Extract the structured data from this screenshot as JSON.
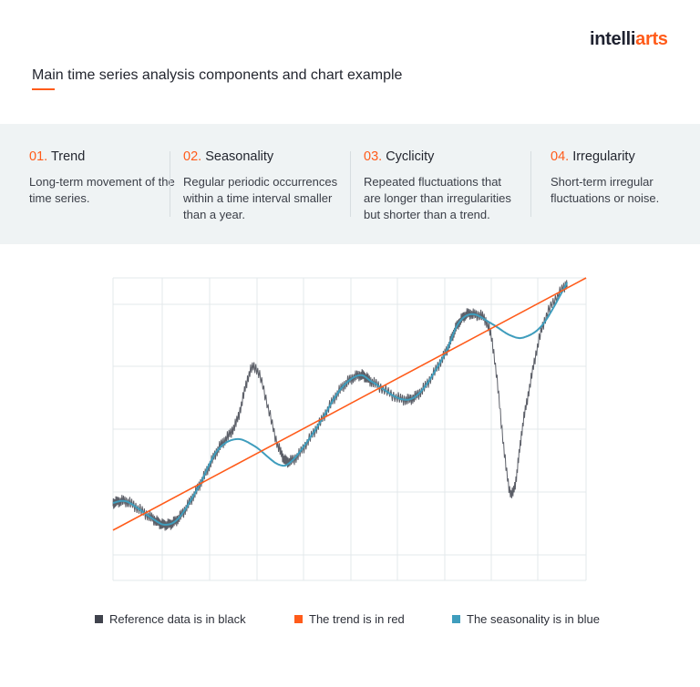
{
  "brand": {
    "logo_part1": "intelli",
    "logo_part2": "arts",
    "accent_color": "#ff5b1a"
  },
  "header": {
    "title": "Main time series analysis components and chart example"
  },
  "components": [
    {
      "number": "01.",
      "name": "Trend",
      "description": "Long-term movement of the time series."
    },
    {
      "number": "02.",
      "name": "Seasonality",
      "description": "Regular periodic occurrences within a time interval smaller than a year."
    },
    {
      "number": "03.",
      "name": "Cyclicity",
      "description": "Repeated fluctuations that are longer than irregularities but shorter than a trend."
    },
    {
      "number": "04.",
      "name": "Irregularity",
      "description": "Short-term irregular fluctuations or noise."
    }
  ],
  "legend": [
    {
      "label": "Reference data is in black",
      "color": "#40434d"
    },
    {
      "label": "The trend is in red",
      "color": "#ff5b1a"
    },
    {
      "label": "The seasonality is in blue",
      "color": "#3f9dbd"
    }
  ],
  "chart_data": {
    "type": "line",
    "title": "",
    "xlabel": "",
    "ylabel": "",
    "xlim": [
      0,
      100
    ],
    "ylim": [
      0,
      100
    ],
    "grid": true,
    "tick_labels_shown": false,
    "legend_position": "bottom",
    "x": [
      0,
      3,
      8,
      11,
      14,
      18,
      22,
      26,
      30,
      35,
      38,
      43,
      48,
      52,
      55,
      61,
      65,
      70,
      73,
      76,
      80,
      84,
      87,
      91,
      96
    ],
    "series": [
      {
        "name": "The trend is in red",
        "color": "#ff5b1a",
        "x": [
          0,
          100
        ],
        "values": [
          16.6,
          100
        ]
      },
      {
        "name": "The seasonality is in blue",
        "color": "#3f9dbd",
        "values": [
          25.6,
          26,
          20.8,
          18.4,
          20.8,
          30.7,
          42.8,
          46.7,
          44.3,
          38.3,
          39.8,
          50.3,
          63,
          67.8,
          65.4,
          59.9,
          62.3,
          74.4,
          84.9,
          88,
          84.9,
          81,
          80.4,
          84.9,
          98.5
        ]
      },
      {
        "name": "Reference data is in black",
        "color": "#40434d",
        "noisy": true,
        "values": [
          25.6,
          26,
          20.8,
          18.4,
          20.8,
          30.7,
          42.8,
          52,
          70.5,
          44,
          39.8,
          50.3,
          63,
          67.8,
          65.4,
          59.9,
          62.3,
          74.4,
          84.9,
          88,
          80,
          29.2,
          55,
          84.9,
          98.5
        ]
      }
    ]
  }
}
